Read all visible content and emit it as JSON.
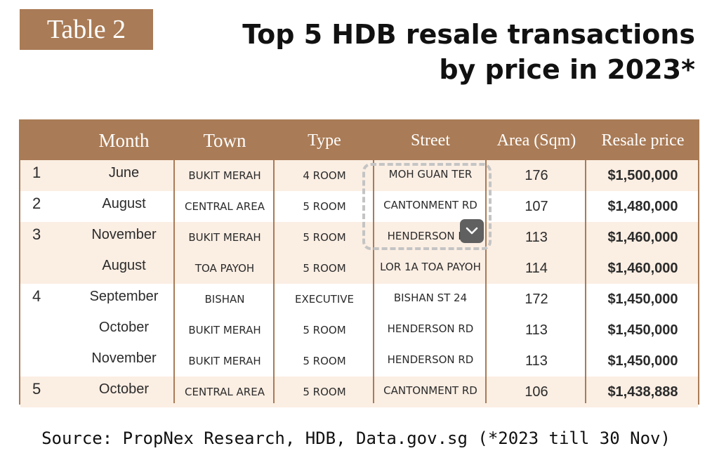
{
  "badge": "Table 2",
  "title": {
    "line1": "Top 5 HDB resale transactions",
    "line2": "by price in 2023*"
  },
  "table": {
    "headers": [
      "",
      "Month",
      "Town",
      "Type",
      "Street",
      "Area (Sqm)",
      "Resale price"
    ],
    "rows": [
      {
        "rank": "1",
        "month": "June",
        "town": "BUKIT MERAH",
        "type": "4 ROOM",
        "street": "MOH GUAN TER",
        "area": "176",
        "price": "$1,500,000"
      },
      {
        "rank": "2",
        "month": "August",
        "town": "CENTRAL AREA",
        "type": "5 ROOM",
        "street": "CANTONMENT RD",
        "area": "107",
        "price": "$1,480,000"
      },
      {
        "rank": "3",
        "month": "November",
        "town": "BUKIT MERAH",
        "type": "5 ROOM",
        "street": "HENDERSON RD",
        "area": "113",
        "price": "$1,460,000"
      },
      {
        "rank": "",
        "month": "August",
        "town": "TOA PAYOH",
        "type": "5 ROOM",
        "street": "LOR 1A TOA PAYOH",
        "area": "114",
        "price": "$1,460,000"
      },
      {
        "rank": "4",
        "month": "September",
        "town": "BISHAN",
        "type": "EXECUTIVE",
        "street": "BISHAN ST 24",
        "area": "172",
        "price": "$1,450,000"
      },
      {
        "rank": "",
        "month": "October",
        "town": "BUKIT MERAH",
        "type": "5 ROOM",
        "street": "HENDERSON RD",
        "area": "113",
        "price": "$1,450,000"
      },
      {
        "rank": "",
        "month": "November",
        "town": "BUKIT MERAH",
        "type": "5 ROOM",
        "street": "HENDERSON RD",
        "area": "113",
        "price": "$1,450,000"
      },
      {
        "rank": "5",
        "month": "October",
        "town": "CENTRAL AREA",
        "type": "5 ROOM",
        "street": "CANTONMENT RD",
        "area": "106",
        "price": "$1,438,888"
      }
    ]
  },
  "scroll_icon": "chevron-down-icon",
  "source": "Source: PropNex Research, HDB, Data.gov.sg (*2023 till 30 Nov)",
  "colors": {
    "accent": "#a97b56",
    "band": "#fbeee3"
  }
}
